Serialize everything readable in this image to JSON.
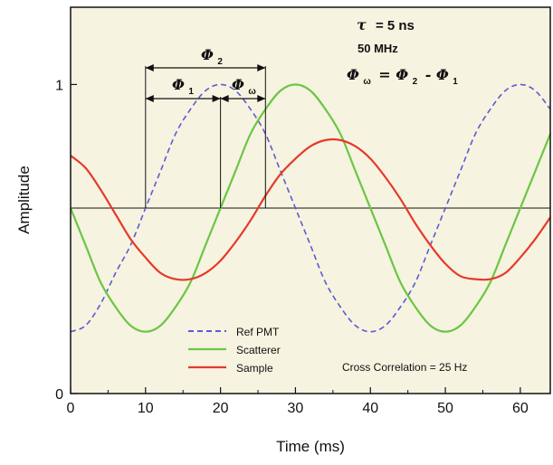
{
  "chart_data": {
    "type": "line",
    "title": "",
    "xlabel": "Time (ms)",
    "ylabel": "Amplitude",
    "xlim": [
      0,
      64
    ],
    "ylim": [
      0,
      1.25
    ],
    "x_ticks": [
      0,
      10,
      20,
      30,
      40,
      50,
      60
    ],
    "y_ticks": [
      0,
      1
    ],
    "baseline": 0.6,
    "background": "#f6f3e0",
    "grid": false,
    "legend": "bottom-left",
    "series": [
      {
        "name": "Ref PMT",
        "color": "#5b5bd6",
        "dash": true,
        "x": [
          0,
          2,
          4,
          6,
          8,
          10,
          12,
          14,
          16,
          18,
          20,
          22,
          24,
          26,
          28,
          30,
          32,
          34,
          36,
          38,
          40,
          42,
          44,
          46,
          48,
          50,
          52,
          54,
          56,
          58,
          60,
          62,
          64
        ],
        "y": [
          0.2,
          0.22,
          0.29,
          0.39,
          0.48,
          0.6,
          0.72,
          0.84,
          0.92,
          0.98,
          1.0,
          0.98,
          0.92,
          0.84,
          0.72,
          0.6,
          0.48,
          0.36,
          0.28,
          0.22,
          0.2,
          0.22,
          0.28,
          0.36,
          0.48,
          0.6,
          0.72,
          0.84,
          0.92,
          0.98,
          1.0,
          0.98,
          0.92
        ]
      },
      {
        "name": "Scatterer",
        "color": "#6cc644",
        "dash": false,
        "x": [
          0,
          2,
          4,
          6,
          8,
          10,
          12,
          14,
          16,
          18,
          20,
          22,
          24,
          26,
          28,
          30,
          32,
          34,
          36,
          38,
          40,
          42,
          44,
          46,
          48,
          50,
          52,
          54,
          56,
          58,
          60,
          62,
          64
        ],
        "y": [
          0.6,
          0.48,
          0.36,
          0.28,
          0.22,
          0.2,
          0.22,
          0.28,
          0.36,
          0.48,
          0.6,
          0.72,
          0.84,
          0.92,
          0.98,
          1.0,
          0.98,
          0.92,
          0.84,
          0.72,
          0.6,
          0.48,
          0.36,
          0.28,
          0.22,
          0.2,
          0.22,
          0.28,
          0.36,
          0.48,
          0.6,
          0.72,
          0.84
        ]
      },
      {
        "name": "Sample",
        "color": "#e53a2a",
        "dash": false,
        "x": [
          0,
          2,
          4,
          6,
          8,
          10,
          12,
          14,
          16,
          18,
          20,
          22,
          24,
          26,
          28,
          30,
          32,
          34,
          36,
          38,
          40,
          42,
          44,
          46,
          48,
          50,
          52,
          54,
          56,
          58,
          60,
          62,
          64
        ],
        "y": [
          0.77,
          0.73,
          0.66,
          0.58,
          0.5,
          0.44,
          0.39,
          0.37,
          0.37,
          0.39,
          0.43,
          0.49,
          0.56,
          0.64,
          0.71,
          0.76,
          0.8,
          0.82,
          0.82,
          0.8,
          0.76,
          0.7,
          0.63,
          0.55,
          0.48,
          0.42,
          0.38,
          0.37,
          0.37,
          0.39,
          0.44,
          0.5,
          0.57
        ]
      }
    ],
    "annotations": {
      "tau_symbol": "τ",
      "tau_eq": "= 5 ns",
      "freq": "50 MHz",
      "phase_eq_lhs": "Φ",
      "phase_eq_lhs_sub": "ω",
      "phase_eq_mid": "= Φ",
      "phase_eq_mid_sub": "2",
      "phase_eq_minus": "- Φ",
      "phase_eq_minus_sub": "1",
      "phi2": "Φ",
      "phi2_sub": "2",
      "phi1": "Φ",
      "phi1_sub": "1",
      "phiw": "Φ",
      "phiw_sub": "ω",
      "cross_correlation": "Cross Correlation = 25 Hz",
      "phi2_span": [
        10,
        26
      ],
      "phi1_span": [
        10,
        20
      ],
      "phiw_span": [
        20,
        26
      ]
    }
  }
}
